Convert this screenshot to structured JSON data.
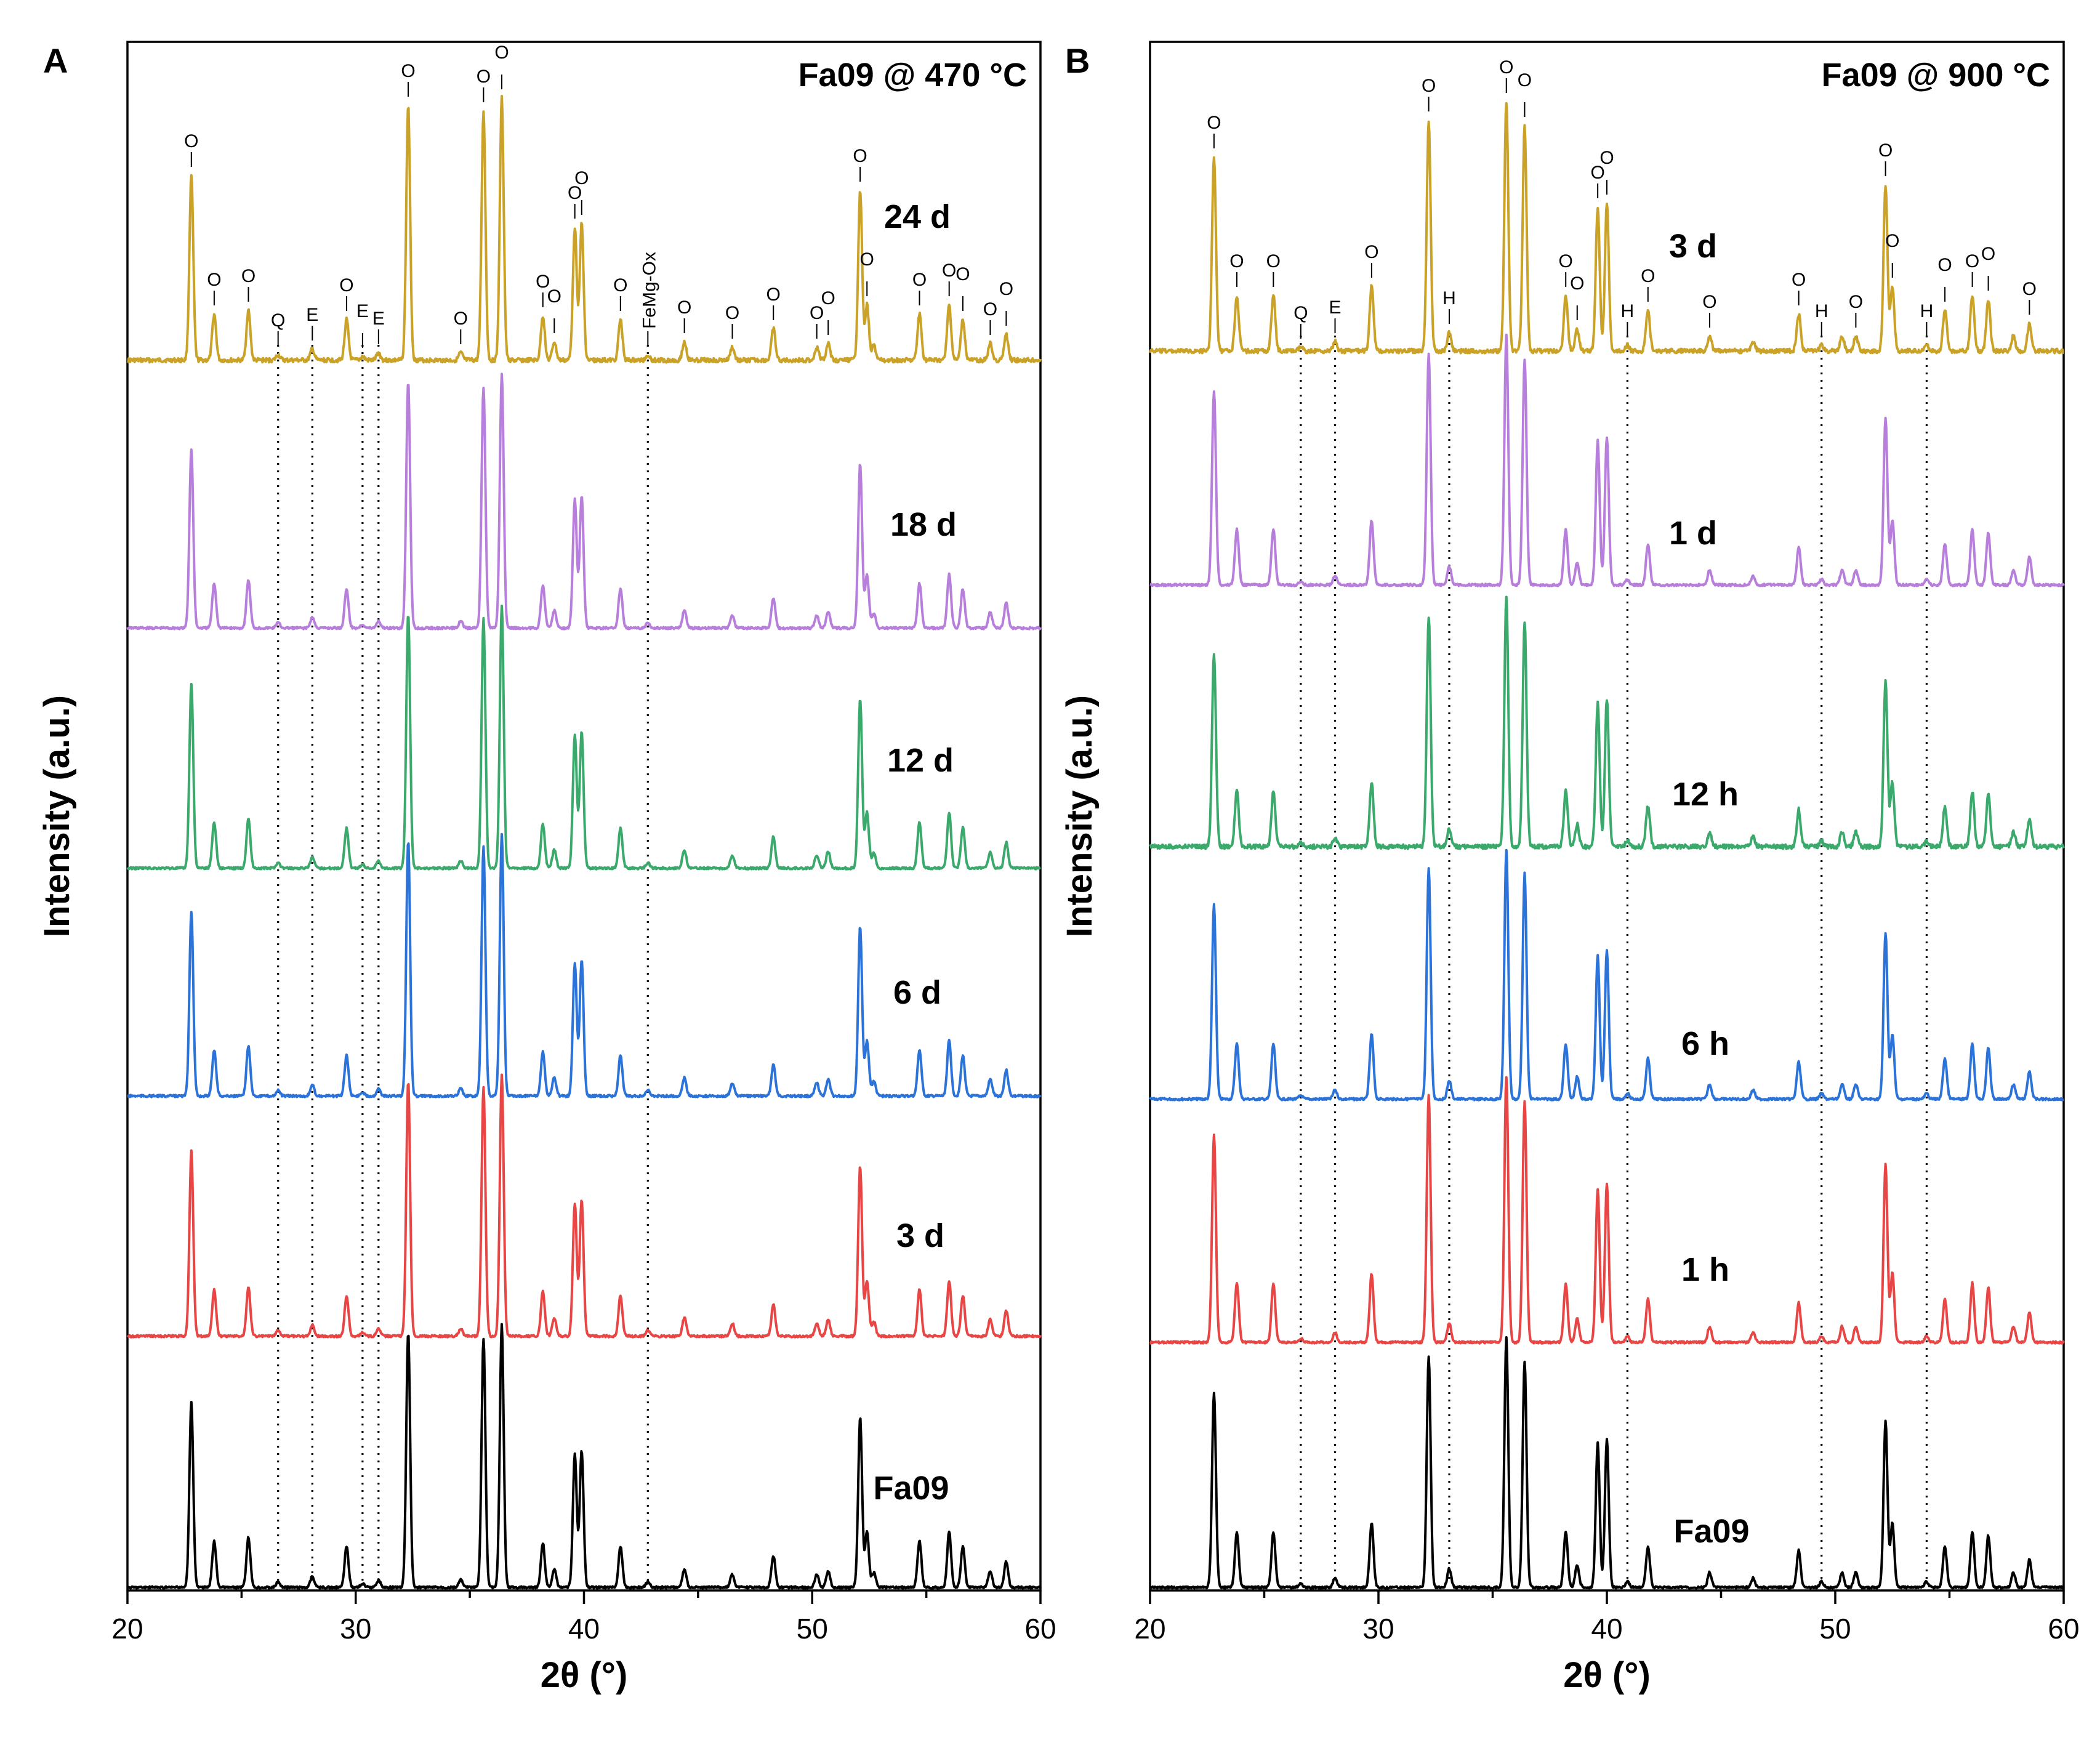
{
  "chart_data": [
    {
      "panel": "A",
      "title": "Fa09 @ 470 °C",
      "type": "line",
      "xlabel": "2θ (°)",
      "ylabel": "Intensity (a.u.)",
      "xlim": [
        20,
        60
      ],
      "xticks": [
        20,
        30,
        40,
        50,
        60
      ],
      "legend_position": "inline labels at right of each trace",
      "reference_lines": [
        26.6,
        28.1,
        30.3,
        31.0,
        42.8
      ],
      "series": [
        {
          "name": "24 d",
          "color": "#C9A227"
        },
        {
          "name": "18 d",
          "color": "#B77FDB"
        },
        {
          "name": "12 d",
          "color": "#3AA96B"
        },
        {
          "name": "6 d",
          "color": "#2B73D8"
        },
        {
          "name": "3 d",
          "color": "#E84545"
        },
        {
          "name": "Fa09",
          "color": "#000000"
        }
      ],
      "peaks": [
        {
          "x": 22.8,
          "h": 1.0,
          "label": "O"
        },
        {
          "x": 23.8,
          "h": 0.25,
          "label": "O"
        },
        {
          "x": 25.3,
          "h": 0.27,
          "label": "O"
        },
        {
          "x": 26.6,
          "h": 0.03,
          "label": "Q"
        },
        {
          "x": 28.1,
          "h": 0.06,
          "label": "E"
        },
        {
          "x": 29.6,
          "h": 0.22,
          "label": "O"
        },
        {
          "x": 30.3,
          "h": 0.02,
          "label": "E"
        },
        {
          "x": 31.0,
          "h": 0.04,
          "label": "E"
        },
        {
          "x": 32.3,
          "h": 1.38,
          "label": "O"
        },
        {
          "x": 34.6,
          "h": 0.04,
          "label": "O"
        },
        {
          "x": 35.6,
          "h": 1.35,
          "label": "O"
        },
        {
          "x": 36.4,
          "h": 1.42,
          "label": "O"
        },
        {
          "x": 38.2,
          "h": 0.24,
          "label": "O"
        },
        {
          "x": 38.7,
          "h": 0.1,
          "label": "O"
        },
        {
          "x": 39.6,
          "h": 0.72,
          "label": "O"
        },
        {
          "x": 39.9,
          "h": 0.74,
          "label": "O"
        },
        {
          "x": 41.6,
          "h": 0.22,
          "label": "O"
        },
        {
          "x": 42.8,
          "h": 0.03,
          "label": "FeMg-Ox"
        },
        {
          "x": 44.4,
          "h": 0.1,
          "label": "O"
        },
        {
          "x": 46.5,
          "h": 0.07,
          "label": "O"
        },
        {
          "x": 48.3,
          "h": 0.17,
          "label": "O"
        },
        {
          "x": 50.2,
          "h": 0.07,
          "label": "O"
        },
        {
          "x": 50.7,
          "h": 0.09,
          "label": "O"
        },
        {
          "x": 52.1,
          "h": 0.92,
          "label": "O"
        },
        {
          "x": 52.4,
          "h": 0.3,
          "label": "O"
        },
        {
          "x": 52.7,
          "h": 0.08,
          "label": ""
        },
        {
          "x": 54.7,
          "h": 0.25,
          "label": "O"
        },
        {
          "x": 56.0,
          "h": 0.3,
          "label": "O"
        },
        {
          "x": 56.6,
          "h": 0.22,
          "label": "O"
        },
        {
          "x": 57.8,
          "h": 0.09,
          "label": "O"
        },
        {
          "x": 58.5,
          "h": 0.14,
          "label": "O"
        }
      ]
    },
    {
      "panel": "B",
      "title": "Fa09 @ 900 °C",
      "type": "line",
      "xlabel": "2θ (°)",
      "ylabel": "Intensity (a.u.)",
      "xlim": [
        20,
        60
      ],
      "xticks": [
        20,
        30,
        40,
        50,
        60
      ],
      "legend_position": "inline labels at right of each trace",
      "reference_lines": [
        26.6,
        28.1,
        33.1,
        40.9,
        49.4,
        54.0
      ],
      "series": [
        {
          "name": "3 d",
          "color": "#C9A227"
        },
        {
          "name": "1 d",
          "color": "#B77FDB"
        },
        {
          "name": "12 h",
          "color": "#3AA96B"
        },
        {
          "name": "6 h",
          "color": "#2B73D8"
        },
        {
          "name": "1 h",
          "color": "#E84545"
        },
        {
          "name": "Fa09",
          "color": "#000000"
        }
      ],
      "peaks": [
        {
          "x": 22.8,
          "h": 1.05,
          "label": "O"
        },
        {
          "x": 23.8,
          "h": 0.3,
          "label": "O"
        },
        {
          "x": 25.4,
          "h": 0.3,
          "label": "O"
        },
        {
          "x": 26.6,
          "h": 0.02,
          "label": "Q"
        },
        {
          "x": 28.1,
          "h": 0.05,
          "label": "E"
        },
        {
          "x": 29.7,
          "h": 0.35,
          "label": "O"
        },
        {
          "x": 32.2,
          "h": 1.25,
          "label": "O"
        },
        {
          "x": 33.1,
          "h": 0.1,
          "label": "H"
        },
        {
          "x": 35.6,
          "h": 1.35,
          "label": "O"
        },
        {
          "x": 36.4,
          "h": 1.22,
          "label": "O"
        },
        {
          "x": 38.2,
          "h": 0.3,
          "label": "O"
        },
        {
          "x": 38.7,
          "h": 0.12,
          "label": "O"
        },
        {
          "x": 39.6,
          "h": 0.78,
          "label": "O"
        },
        {
          "x": 40.0,
          "h": 0.8,
          "label": "O"
        },
        {
          "x": 40.9,
          "h": 0.03,
          "label": "H"
        },
        {
          "x": 41.8,
          "h": 0.22,
          "label": "O"
        },
        {
          "x": 44.5,
          "h": 0.08,
          "label": "O"
        },
        {
          "x": 46.4,
          "h": 0.05,
          "label": ""
        },
        {
          "x": 48.4,
          "h": 0.2,
          "label": "O"
        },
        {
          "x": 49.4,
          "h": 0.03,
          "label": "H"
        },
        {
          "x": 50.3,
          "h": 0.08,
          "label": ""
        },
        {
          "x": 50.9,
          "h": 0.08,
          "label": "O"
        },
        {
          "x": 52.2,
          "h": 0.9,
          "label": "O"
        },
        {
          "x": 52.5,
          "h": 0.35,
          "label": "O"
        },
        {
          "x": 54.0,
          "h": 0.03,
          "label": "H"
        },
        {
          "x": 54.8,
          "h": 0.22,
          "label": "O"
        },
        {
          "x": 56.0,
          "h": 0.3,
          "label": "O"
        },
        {
          "x": 56.7,
          "h": 0.28,
          "label": "O"
        },
        {
          "x": 57.8,
          "h": 0.08,
          "label": ""
        },
        {
          "x": 58.5,
          "h": 0.15,
          "label": "O"
        }
      ]
    }
  ]
}
